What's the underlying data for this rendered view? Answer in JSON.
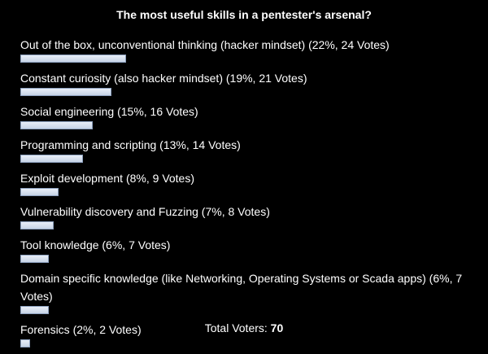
{
  "poll": {
    "title": "The most useful skills in a pentester's arsenal?",
    "bar_color": "#d6dfee",
    "options": [
      {
        "label": "Out of the box, unconventional thinking (hacker mindset) (22%, 24 Votes)",
        "percent": 22
      },
      {
        "label": "Constant curiosity (also hacker mindset) (19%, 21 Votes)",
        "percent": 19
      },
      {
        "label": "Social engineering (15%, 16 Votes)",
        "percent": 15
      },
      {
        "label": "Programming and scripting (13%, 14 Votes)",
        "percent": 13
      },
      {
        "label": "Exploit development (8%, 9 Votes)",
        "percent": 8
      },
      {
        "label": "Vulnerability discovery and Fuzzing (7%, 8 Votes)",
        "percent": 7
      },
      {
        "label": "Tool knowledge (6%, 7 Votes)",
        "percent": 6
      },
      {
        "label": "Domain specific knowledge (like Networking, Operating Systems or Scada apps) (6%, 7 Votes)",
        "percent": 6
      },
      {
        "label": "Forensics (2%, 2 Votes)",
        "percent": 2
      }
    ],
    "total_label": "Total Voters:",
    "total_value": "70"
  }
}
